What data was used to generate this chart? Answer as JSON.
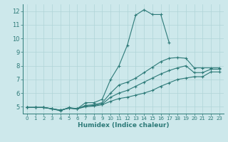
{
  "xlabel": "Humidex (Indice chaleur)",
  "xlim": [
    -0.5,
    23.5
  ],
  "ylim": [
    4.5,
    12.5
  ],
  "xticks": [
    0,
    1,
    2,
    3,
    4,
    5,
    6,
    7,
    8,
    9,
    10,
    11,
    12,
    13,
    14,
    15,
    16,
    17,
    18,
    19,
    20,
    21,
    22,
    23
  ],
  "yticks": [
    5,
    6,
    7,
    8,
    9,
    10,
    11,
    12
  ],
  "background_color": "#cde8eb",
  "line_color": "#2d7a78",
  "grid_color": "#b0d4d8",
  "lines": [
    {
      "x": [
        0,
        1,
        2,
        3,
        4,
        5,
        6,
        7,
        8,
        9,
        10,
        11,
        12,
        13,
        14,
        15,
        16,
        17
      ],
      "y": [
        4.95,
        4.95,
        4.95,
        4.85,
        4.7,
        4.95,
        4.85,
        5.3,
        5.3,
        5.55,
        7.0,
        8.0,
        9.5,
        11.7,
        12.1,
        11.75,
        11.75,
        9.7
      ]
    },
    {
      "x": [
        0,
        1,
        2,
        3,
        4,
        5,
        6,
        7,
        8,
        9,
        10,
        11,
        12,
        13,
        14,
        15,
        16,
        17,
        18,
        19,
        20,
        21,
        22,
        23
      ],
      "y": [
        4.95,
        4.95,
        4.95,
        4.85,
        4.75,
        4.9,
        4.85,
        5.1,
        5.15,
        5.3,
        6.0,
        6.6,
        6.8,
        7.1,
        7.5,
        7.9,
        8.3,
        8.55,
        8.6,
        8.55,
        7.85,
        7.85,
        7.85,
        7.85
      ]
    },
    {
      "x": [
        0,
        1,
        2,
        3,
        4,
        5,
        6,
        7,
        8,
        9,
        10,
        11,
        12,
        13,
        14,
        15,
        16,
        17,
        18,
        19,
        20,
        21,
        22,
        23
      ],
      "y": [
        4.95,
        4.95,
        4.95,
        4.85,
        4.75,
        4.9,
        4.85,
        5.05,
        5.1,
        5.2,
        5.7,
        6.0,
        6.2,
        6.5,
        6.8,
        7.1,
        7.4,
        7.65,
        7.85,
        8.0,
        7.5,
        7.5,
        7.75,
        7.75
      ]
    },
    {
      "x": [
        0,
        1,
        2,
        3,
        4,
        5,
        6,
        7,
        8,
        9,
        10,
        11,
        12,
        13,
        14,
        15,
        16,
        17,
        18,
        19,
        20,
        21,
        22,
        23
      ],
      "y": [
        4.95,
        4.95,
        4.95,
        4.85,
        4.75,
        4.9,
        4.85,
        5.0,
        5.05,
        5.15,
        5.4,
        5.6,
        5.7,
        5.85,
        6.0,
        6.2,
        6.5,
        6.75,
        7.0,
        7.1,
        7.2,
        7.2,
        7.55,
        7.55
      ]
    }
  ]
}
